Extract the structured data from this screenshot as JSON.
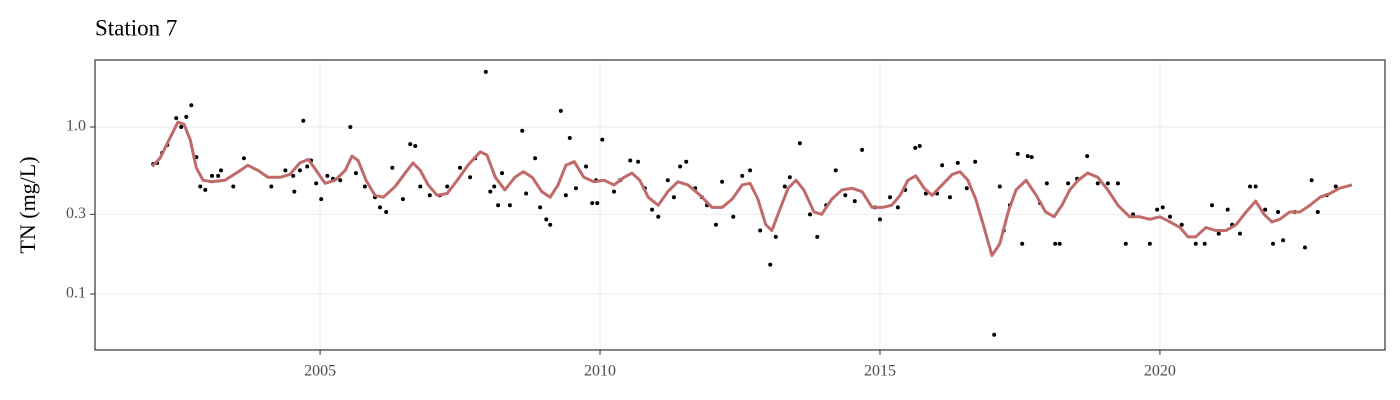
{
  "chart_data": {
    "type": "scatter",
    "title": "Station 7",
    "y_label": "TN (mg/L)",
    "ylog": true,
    "grid": true,
    "xlim": [
      2000.98,
      2024.02
    ],
    "xticks": [
      2005,
      2010,
      2015,
      2020
    ],
    "ylim": [
      0.0462,
      2.52
    ],
    "yticks": [
      0.1,
      0.3,
      {
        "value": 1,
        "label": "1.0"
      }
    ],
    "series": [
      {
        "type": "scatter",
        "color": "#000000",
        "x": [
          2002.02,
          2002.09,
          2002.18,
          2002.27,
          2002.43,
          2002.52,
          2002.61,
          2002.7,
          2002.79,
          2002.86,
          2002.95,
          2003.07,
          2003.18,
          2003.23,
          2003.45,
          2003.64,
          2004.13,
          2004.38,
          2004.52,
          2004.54,
          2004.64,
          2004.7,
          2004.77,
          2004.84,
          2004.93,
          2005.02,
          2005.13,
          2005.23,
          2005.36,
          2005.54,
          2005.64,
          2005.8,
          2005.98,
          2006.07,
          2006.18,
          2006.29,
          2006.48,
          2006.61,
          2006.7,
          2006.79,
          2006.96,
          2007.14,
          2007.27,
          2007.5,
          2007.68,
          2007.77,
          2007.96,
          2008.04,
          2008.11,
          2008.18,
          2008.25,
          2008.39,
          2008.61,
          2008.68,
          2008.84,
          2008.93,
          2009.04,
          2009.11,
          2009.3,
          2009.39,
          2009.46,
          2009.57,
          2009.75,
          2009.86,
          2009.93,
          2009.95,
          2010.04,
          2010.25,
          2010.36,
          2010.54,
          2010.68,
          2010.8,
          2010.93,
          2011.04,
          2011.21,
          2011.32,
          2011.43,
          2011.54,
          2011.7,
          2011.82,
          2011.91,
          2012.07,
          2012.18,
          2012.38,
          2012.54,
          2012.68,
          2012.86,
          2013.04,
          2013.14,
          2013.3,
          2013.39,
          2013.57,
          2013.75,
          2013.88,
          2014.04,
          2014.21,
          2014.38,
          2014.55,
          2014.68,
          2014.91,
          2015.0,
          2015.18,
          2015.32,
          2015.45,
          2015.63,
          2015.71,
          2015.82,
          2016.02,
          2016.11,
          2016.25,
          2016.39,
          2016.55,
          2016.7,
          2017.04,
          2017.14,
          2017.21,
          2017.32,
          2017.46,
          2017.54,
          2017.64,
          2017.71,
          2017.86,
          2017.98,
          2018.13,
          2018.21,
          2018.36,
          2018.52,
          2018.7,
          2018.89,
          2019.07,
          2019.25,
          2019.39,
          2019.52,
          2019.82,
          2019.95,
          2020.05,
          2020.18,
          2020.39,
          2020.64,
          2020.8,
          2020.93,
          2021.05,
          2021.21,
          2021.29,
          2021.43,
          2021.61,
          2021.71,
          2021.88,
          2022.02,
          2022.11,
          2022.2,
          2022.41,
          2022.59,
          2022.71,
          2022.82,
          2022.98,
          2023.14
        ],
        "values": [
          0.6,
          0.61,
          0.7,
          0.78,
          1.13,
          1.0,
          1.15,
          1.35,
          0.66,
          0.44,
          0.42,
          0.51,
          0.51,
          0.55,
          0.44,
          0.65,
          0.44,
          0.55,
          0.51,
          0.41,
          0.55,
          1.09,
          0.58,
          0.63,
          0.46,
          0.37,
          0.51,
          0.49,
          0.48,
          1.0,
          0.53,
          0.44,
          0.38,
          0.33,
          0.31,
          0.57,
          0.37,
          0.79,
          0.77,
          0.44,
          0.39,
          0.39,
          0.44,
          0.57,
          0.5,
          0.65,
          2.14,
          0.41,
          0.44,
          0.34,
          0.53,
          0.34,
          0.95,
          0.4,
          0.65,
          0.33,
          0.28,
          0.26,
          1.25,
          0.39,
          0.86,
          0.43,
          0.58,
          0.35,
          0.48,
          0.35,
          0.84,
          0.41,
          0.48,
          0.63,
          0.62,
          0.43,
          0.32,
          0.29,
          0.48,
          0.38,
          0.58,
          0.62,
          0.43,
          0.38,
          0.34,
          0.26,
          0.47,
          0.29,
          0.51,
          0.55,
          0.24,
          0.15,
          0.22,
          0.44,
          0.5,
          0.8,
          0.3,
          0.22,
          0.34,
          0.55,
          0.39,
          0.36,
          0.73,
          0.33,
          0.28,
          0.38,
          0.33,
          0.42,
          0.75,
          0.77,
          0.4,
          0.4,
          0.59,
          0.38,
          0.61,
          0.43,
          0.62,
          0.057,
          0.44,
          0.24,
          0.34,
          0.69,
          0.2,
          0.67,
          0.66,
          0.35,
          0.46,
          0.2,
          0.2,
          0.46,
          0.49,
          0.67,
          0.46,
          0.46,
          0.46,
          0.2,
          0.3,
          0.2,
          0.32,
          0.33,
          0.29,
          0.26,
          0.2,
          0.2,
          0.34,
          0.23,
          0.32,
          0.26,
          0.23,
          0.44,
          0.44,
          0.32,
          0.2,
          0.31,
          0.21,
          0.31,
          0.19,
          0.48,
          0.31,
          0.39,
          0.44
        ]
      },
      {
        "type": "line",
        "color": "#c06a6a",
        "x": [
          2002.0,
          2002.14,
          2002.32,
          2002.46,
          2002.57,
          2002.68,
          2002.79,
          2002.91,
          2003.07,
          2003.3,
          2003.54,
          2003.71,
          2003.89,
          2004.07,
          2004.29,
          2004.46,
          2004.64,
          2004.79,
          2004.93,
          2005.09,
          2005.27,
          2005.45,
          2005.57,
          2005.68,
          2005.82,
          2005.98,
          2006.13,
          2006.34,
          2006.52,
          2006.66,
          2006.79,
          2006.93,
          2007.09,
          2007.27,
          2007.45,
          2007.64,
          2007.86,
          2007.98,
          2008.13,
          2008.3,
          2008.48,
          2008.63,
          2008.79,
          2008.96,
          2009.11,
          2009.25,
          2009.39,
          2009.54,
          2009.71,
          2009.89,
          2010.07,
          2010.25,
          2010.43,
          2010.57,
          2010.71,
          2010.86,
          2011.04,
          2011.21,
          2011.39,
          2011.57,
          2011.79,
          2012.0,
          2012.18,
          2012.36,
          2012.54,
          2012.68,
          2012.82,
          2012.96,
          2013.07,
          2013.21,
          2013.36,
          2013.5,
          2013.64,
          2013.82,
          2013.96,
          2014.14,
          2014.32,
          2014.5,
          2014.68,
          2014.86,
          2015.04,
          2015.21,
          2015.36,
          2015.5,
          2015.64,
          2015.79,
          2015.93,
          2016.11,
          2016.29,
          2016.43,
          2016.57,
          2016.71,
          2016.86,
          2017.0,
          2017.14,
          2017.29,
          2017.43,
          2017.61,
          2017.79,
          2017.96,
          2018.11,
          2018.25,
          2018.39,
          2018.54,
          2018.71,
          2018.89,
          2019.07,
          2019.25,
          2019.46,
          2019.64,
          2019.82,
          2020.0,
          2020.18,
          2020.36,
          2020.5,
          2020.64,
          2020.82,
          2021.0,
          2021.18,
          2021.36,
          2021.54,
          2021.71,
          2021.86,
          2022.0,
          2022.14,
          2022.32,
          2022.5,
          2022.68,
          2022.86,
          2023.04,
          2023.21,
          2023.43
        ],
        "values": [
          0.58,
          0.65,
          0.86,
          1.07,
          1.04,
          0.84,
          0.57,
          0.48,
          0.47,
          0.48,
          0.54,
          0.59,
          0.55,
          0.5,
          0.5,
          0.52,
          0.61,
          0.64,
          0.55,
          0.46,
          0.48,
          0.55,
          0.67,
          0.63,
          0.48,
          0.39,
          0.38,
          0.44,
          0.53,
          0.61,
          0.55,
          0.45,
          0.39,
          0.4,
          0.48,
          0.59,
          0.71,
          0.68,
          0.5,
          0.42,
          0.5,
          0.54,
          0.5,
          0.41,
          0.38,
          0.45,
          0.59,
          0.62,
          0.5,
          0.47,
          0.48,
          0.45,
          0.5,
          0.53,
          0.48,
          0.38,
          0.34,
          0.41,
          0.47,
          0.45,
          0.39,
          0.33,
          0.33,
          0.37,
          0.45,
          0.46,
          0.37,
          0.26,
          0.24,
          0.32,
          0.43,
          0.48,
          0.42,
          0.31,
          0.3,
          0.37,
          0.42,
          0.43,
          0.41,
          0.33,
          0.33,
          0.34,
          0.39,
          0.48,
          0.51,
          0.43,
          0.39,
          0.45,
          0.52,
          0.54,
          0.48,
          0.37,
          0.25,
          0.17,
          0.2,
          0.31,
          0.42,
          0.48,
          0.39,
          0.31,
          0.29,
          0.34,
          0.42,
          0.48,
          0.53,
          0.5,
          0.42,
          0.34,
          0.29,
          0.29,
          0.28,
          0.29,
          0.27,
          0.25,
          0.22,
          0.22,
          0.25,
          0.24,
          0.24,
          0.26,
          0.31,
          0.36,
          0.3,
          0.27,
          0.28,
          0.31,
          0.31,
          0.34,
          0.38,
          0.4,
          0.43,
          0.45
        ]
      }
    ]
  }
}
